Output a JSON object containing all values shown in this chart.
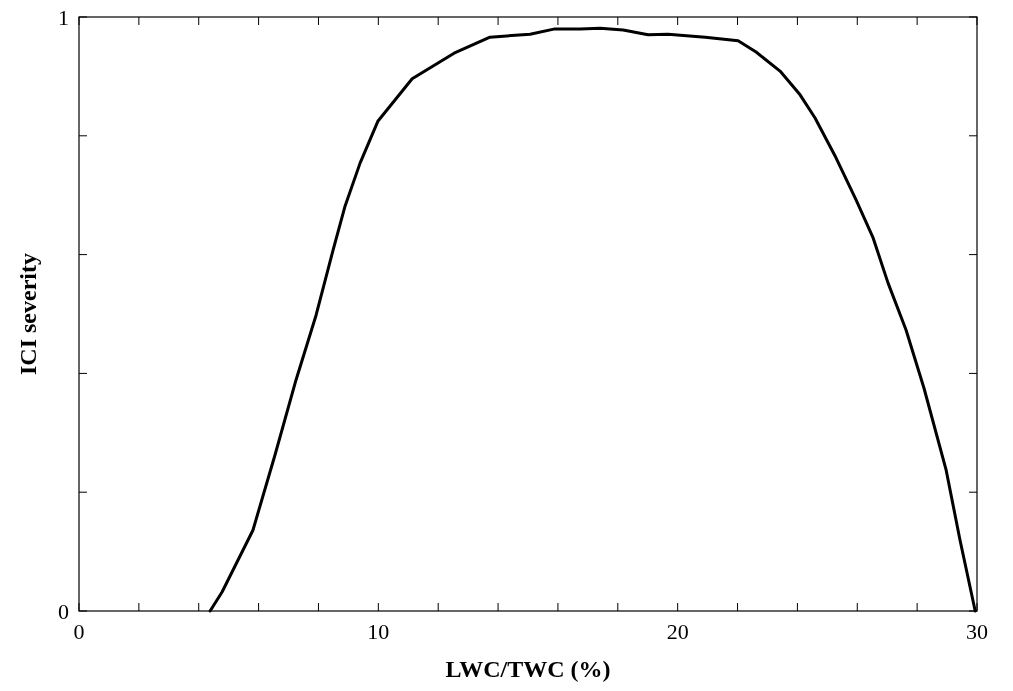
{
  "chart_data": {
    "type": "line",
    "xlabel": "LWC/TWC (%)",
    "ylabel": "ICI severity",
    "xlim": [
      0,
      30
    ],
    "ylim": [
      0,
      1
    ],
    "xticks": [
      0,
      {
        "value": 2,
        "label": null
      },
      {
        "value": 4,
        "label": null
      },
      {
        "value": 6,
        "label": null
      },
      {
        "value": 8,
        "label": null
      },
      10,
      {
        "value": 12,
        "label": null
      },
      {
        "value": 14,
        "label": null
      },
      {
        "value": 16,
        "label": null
      },
      {
        "value": 18,
        "label": null
      },
      20,
      {
        "value": 22,
        "label": null
      },
      {
        "value": 24,
        "label": null
      },
      {
        "value": 26,
        "label": null
      },
      {
        "value": 28,
        "label": null
      },
      30
    ],
    "yticks": [
      0,
      {
        "value": 0.2,
        "label": null
      },
      {
        "value": 0.4,
        "label": null
      },
      {
        "value": 0.6,
        "label": null
      },
      {
        "value": 0.8,
        "label": null
      },
      1
    ],
    "grid": false,
    "marker": "none",
    "line_style": "solid",
    "series": [
      {
        "color": "#000000",
        "x": [
          4.38,
          4.78,
          5.81,
          6.55,
          7.25,
          7.92,
          8.49,
          8.89,
          9.39,
          9.99,
          11.13,
          12.53,
          13.73,
          15.07,
          15.9,
          16.74,
          17.41,
          18.18,
          19.01,
          19.68,
          20.92,
          22.02,
          22.62,
          23.42,
          24.09,
          24.59,
          25.29,
          25.96,
          26.53,
          27.03,
          27.63,
          28.23,
          28.97,
          29.43,
          29.94
        ],
        "values": [
          0,
          0.032,
          0.136,
          0.263,
          0.389,
          0.498,
          0.608,
          0.682,
          0.754,
          0.825,
          0.896,
          0.939,
          0.966,
          0.971,
          0.98,
          0.98,
          0.981,
          0.978,
          0.97,
          0.971,
          0.966,
          0.96,
          0.941,
          0.909,
          0.869,
          0.83,
          0.763,
          0.692,
          0.628,
          0.552,
          0.473,
          0.375,
          0.237,
          0.12,
          0
        ]
      }
    ]
  }
}
